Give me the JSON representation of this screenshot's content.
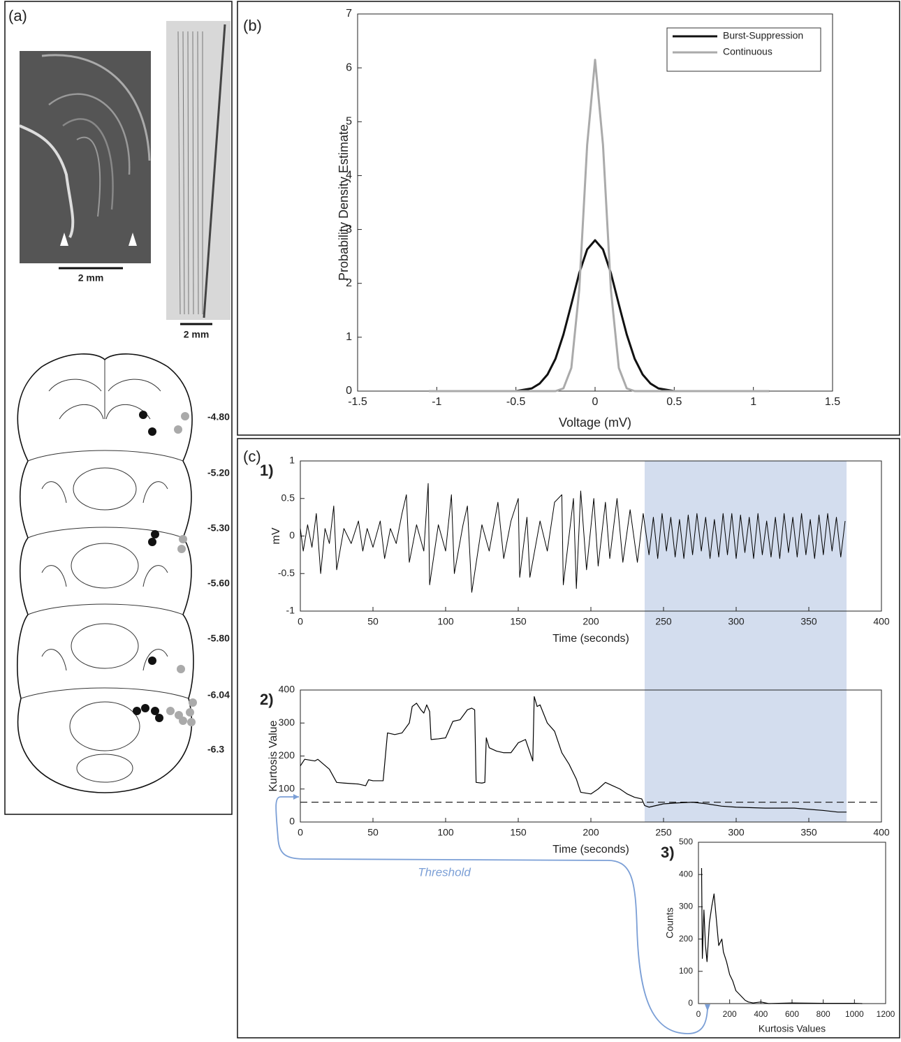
{
  "panel_labels": [
    "(a)",
    "(b)",
    "(c)"
  ],
  "panel_a": {
    "scale_labels": [
      "2 mm",
      "2 mm"
    ],
    "levels": [
      "-4.80",
      "-5.20",
      "-5.30",
      "-5.60",
      "-5.80",
      "-6.04",
      "-6.3"
    ]
  },
  "annotation": "Threshold",
  "chart_data": [
    {
      "type": "line",
      "x_label": "Voltage (mV)",
      "y_label": "Probability Density Estimate",
      "x": [
        -1.05,
        -0.5,
        -0.4,
        -0.35,
        -0.3,
        -0.25,
        -0.2,
        -0.15,
        -0.1,
        -0.05,
        0,
        0.05,
        0.1,
        0.15,
        0.2,
        0.25,
        0.3,
        0.35,
        0.4,
        0.5,
        1.1
      ],
      "series": [
        {
          "name": "Burst-Suppression",
          "color": "#111111",
          "values": [
            0,
            0,
            0.05,
            0.14,
            0.31,
            0.6,
            1.05,
            1.61,
            2.19,
            2.63,
            2.8,
            2.63,
            2.19,
            1.61,
            1.05,
            0.6,
            0.31,
            0.14,
            0.05,
            0,
            0
          ]
        },
        {
          "name": "Continuous",
          "color": "#aaaaaa",
          "values": [
            0,
            0,
            0,
            0,
            0,
            0,
            0.05,
            0.43,
            1.88,
            4.57,
            6.15,
            4.57,
            1.88,
            0.43,
            0.05,
            0,
            0,
            0,
            0,
            0,
            0
          ]
        }
      ],
      "xlim": [
        -1.5,
        1.5
      ],
      "xticks": [
        -1.5,
        -1,
        -0.5,
        0,
        0.5,
        1,
        1.5
      ],
      "ylim": [
        0,
        7
      ],
      "yticks": [
        0,
        1,
        2,
        3,
        4,
        5,
        6,
        7
      ],
      "legend": "upper right"
    },
    {
      "type": "line",
      "label": "1)",
      "x_label": "Time (seconds)",
      "y_label": "mV",
      "color": "#000000",
      "x": [
        0,
        2,
        5,
        8,
        11,
        14,
        17,
        20,
        23,
        25,
        30,
        35,
        40,
        43,
        46,
        50,
        55,
        58,
        62,
        66,
        70,
        73,
        75,
        80,
        85,
        88,
        89,
        95,
        100,
        104,
        106,
        112,
        115,
        118,
        125,
        130,
        136,
        140,
        145,
        150,
        151,
        156,
        158,
        165,
        170,
        175,
        180,
        181,
        188,
        190,
        193,
        197,
        202,
        205,
        210,
        213,
        218,
        222,
        227,
        232,
        236,
        240,
        243,
        246,
        249,
        252,
        255,
        258,
        261,
        264,
        267,
        270,
        273,
        276,
        279,
        282,
        285,
        288,
        291,
        294,
        297,
        300,
        303,
        306,
        309,
        312,
        315,
        318,
        321,
        324,
        327,
        330,
        333,
        336,
        339,
        342,
        345,
        348,
        351,
        354,
        357,
        360,
        363,
        366,
        369,
        372,
        375
      ],
      "values": [
        0.1,
        -0.2,
        0.15,
        -0.15,
        0.3,
        -0.5,
        0.1,
        -0.1,
        0.4,
        -0.45,
        0.1,
        -0.1,
        0.2,
        -0.2,
        0.1,
        -0.15,
        0.2,
        -0.3,
        0.1,
        -0.1,
        0.3,
        0.55,
        -0.35,
        0.15,
        -0.2,
        0.7,
        -0.65,
        0.15,
        -0.2,
        0.55,
        -0.5,
        0.15,
        0.4,
        -0.75,
        0.15,
        -0.2,
        0.45,
        -0.3,
        0.2,
        0.5,
        -0.55,
        0.25,
        -0.55,
        0.2,
        -0.2,
        0.45,
        0.55,
        -0.65,
        0.5,
        -0.7,
        0.6,
        -0.45,
        0.5,
        -0.4,
        0.45,
        -0.3,
        0.5,
        -0.35,
        0.35,
        -0.35,
        0.3,
        -0.25,
        0.25,
        -0.3,
        0.3,
        -0.2,
        0.25,
        -0.28,
        0.22,
        -0.3,
        0.28,
        -0.25,
        0.3,
        -0.2,
        0.25,
        -0.3,
        0.22,
        -0.28,
        0.3,
        -0.25,
        0.3,
        -0.3,
        0.28,
        -0.22,
        0.25,
        -0.3,
        0.3,
        -0.25,
        0.2,
        -0.28,
        0.25,
        -0.3,
        0.3,
        -0.22,
        0.25,
        -0.28,
        0.3,
        -0.25,
        0.22,
        -0.3,
        0.28,
        -0.25,
        0.3,
        -0.2,
        0.25,
        -0.28,
        0.2
      ],
      "xlim": [
        0,
        400
      ],
      "xticks": [
        0,
        50,
        100,
        150,
        200,
        250,
        300,
        350,
        400
      ],
      "ylim": [
        -1,
        1
      ],
      "yticks": [
        -1,
        -0.5,
        0,
        0.5,
        1
      ],
      "shade_x": [
        237,
        376
      ],
      "shade_color": "#d3ddee"
    },
    {
      "type": "line",
      "label": "2)",
      "x_label": "Time (seconds)",
      "y_label": "Kurtosis Value",
      "color": "#000000",
      "x": [
        0,
        3,
        10,
        12,
        16,
        20,
        25,
        30,
        40,
        45,
        47,
        50,
        57,
        60,
        65,
        70,
        75,
        77,
        80,
        83,
        85,
        87,
        89,
        90,
        95,
        100,
        105,
        110,
        115,
        118,
        120,
        121,
        125,
        127,
        128,
        130,
        135,
        140,
        145,
        150,
        155,
        160,
        161,
        163,
        165,
        170,
        175,
        180,
        185,
        190,
        193,
        200,
        205,
        210,
        215,
        220,
        225,
        230,
        235,
        237,
        240,
        250,
        260,
        270,
        280,
        290,
        300,
        320,
        340,
        360,
        370,
        376
      ],
      "values": [
        170,
        190,
        185,
        190,
        175,
        160,
        120,
        118,
        115,
        110,
        128,
        125,
        125,
        270,
        265,
        270,
        300,
        350,
        360,
        340,
        330,
        355,
        335,
        250,
        252,
        255,
        305,
        310,
        340,
        345,
        340,
        120,
        118,
        120,
        255,
        225,
        215,
        210,
        210,
        240,
        250,
        185,
        380,
        350,
        355,
        300,
        275,
        210,
        175,
        130,
        90,
        85,
        100,
        120,
        110,
        100,
        85,
        75,
        70,
        50,
        45,
        55,
        58,
        60,
        55,
        48,
        45,
        42,
        42,
        35,
        30,
        30
      ],
      "threshold": 60,
      "xlim": [
        0,
        400
      ],
      "xticks": [
        0,
        50,
        100,
        150,
        200,
        250,
        300,
        350,
        400
      ],
      "ylim": [
        0,
        400
      ],
      "yticks": [
        0,
        100,
        200,
        300,
        400
      ]
    },
    {
      "type": "line",
      "label": "3)",
      "x_label": "Kurtosis Values",
      "y_label": "Counts",
      "color": "#000000",
      "x": [
        20,
        25,
        35,
        45,
        55,
        70,
        85,
        100,
        115,
        130,
        150,
        160,
        180,
        200,
        220,
        240,
        260,
        280,
        300,
        320,
        350,
        400,
        450,
        600,
        800,
        1000,
        1050
      ],
      "values": [
        420,
        140,
        290,
        180,
        130,
        250,
        300,
        340,
        260,
        180,
        200,
        160,
        130,
        90,
        70,
        40,
        30,
        20,
        10,
        5,
        2,
        5,
        0,
        2,
        1,
        1,
        0
      ],
      "xlim": [
        0,
        1200
      ],
      "xticks": [
        0,
        200,
        400,
        600,
        800,
        1000,
        1200
      ],
      "ylim": [
        0,
        500
      ],
      "yticks": [
        0,
        100,
        200,
        300,
        400,
        500
      ]
    }
  ]
}
